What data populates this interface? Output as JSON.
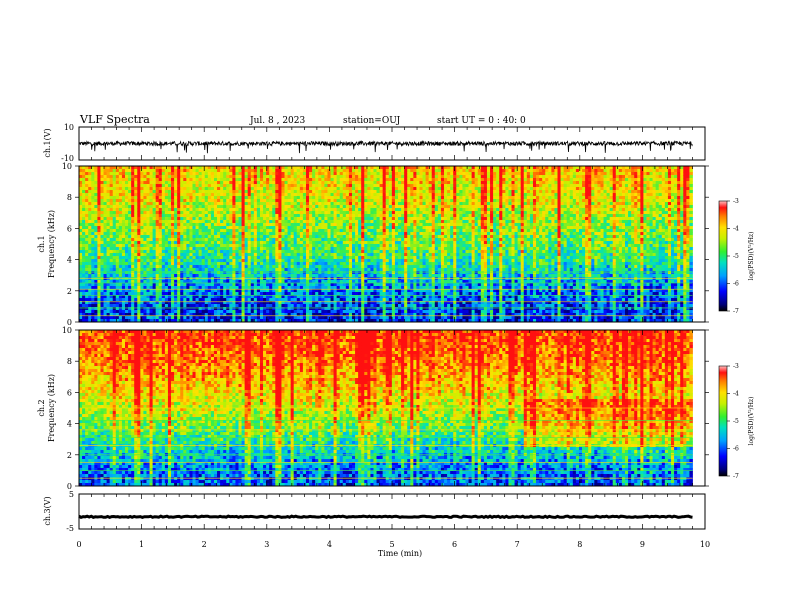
{
  "header": {
    "title": "VLF Spectra",
    "date": "Jul. 8 , 2023",
    "station": "station=OUJ",
    "start_ut": "start UT = 0 : 40: 0"
  },
  "colors": {
    "colormap": [
      "#000080",
      "#0000ff",
      "#00a0ff",
      "#00e0c0",
      "#40f040",
      "#c8f000",
      "#ffe000",
      "#ff8000",
      "#ff1010"
    ],
    "waveform": "#000000"
  },
  "chart_data": [
    {
      "type": "line",
      "id": "ch1-waveform",
      "ylabel": "ch.1(V)",
      "ylim": [
        -10,
        10
      ],
      "yticks": [
        {
          "value": 10,
          "label": "10"
        },
        {
          "value": -10,
          "label": "-10"
        }
      ],
      "xlim": [
        0,
        10
      ],
      "data_end_min": 9.8,
      "baseline_v": 0,
      "noise_amplitude_v": 2.5,
      "spike_amplitude_v": 6
    },
    {
      "type": "heatmap",
      "id": "ch1-spectrogram",
      "ylabel": "ch.1\nFrequency (kHz)",
      "ylim": [
        0,
        10
      ],
      "yticks": [
        0,
        2,
        4,
        6,
        8,
        10
      ],
      "xlim": [
        0,
        10
      ],
      "data_end_min": 9.8,
      "colorbar": {
        "label": "log(PSD)(V²/Hz)",
        "range": [
          -7,
          -3
        ],
        "ticks": [
          -3,
          -4,
          -5,
          -6,
          -7
        ]
      },
      "log_psd_profile": [
        {
          "freq_khz": 0,
          "value": -6.6
        },
        {
          "freq_khz": 1,
          "value": -6.5
        },
        {
          "freq_khz": 2,
          "value": -6.2
        },
        {
          "freq_khz": 3,
          "value": -5.8
        },
        {
          "freq_khz": 4,
          "value": -5.4
        },
        {
          "freq_khz": 6,
          "value": -4.9
        },
        {
          "freq_khz": 8,
          "value": -4.4
        },
        {
          "freq_khz": 10,
          "value": -4.1
        }
      ],
      "lines_khz": [
        0.4,
        0.9,
        1.3,
        1.7,
        2.1,
        2.5,
        2.8,
        3.2
      ]
    },
    {
      "type": "heatmap",
      "id": "ch2-spectrogram",
      "ylabel": "ch.2\nFrequency (kHz)",
      "ylim": [
        0,
        10
      ],
      "yticks": [
        0,
        2,
        4,
        6,
        8,
        10
      ],
      "xlim": [
        0,
        10
      ],
      "data_end_min": 9.8,
      "colorbar": {
        "label": "log(PSD)(V²/Hz)",
        "range": [
          -7,
          -3
        ],
        "ticks": [
          -3,
          -4,
          -5,
          -6,
          -7
        ]
      },
      "log_psd_profile": [
        {
          "freq_khz": 0,
          "value": -6.4
        },
        {
          "freq_khz": 1,
          "value": -6.2
        },
        {
          "freq_khz": 2,
          "value": -5.8
        },
        {
          "freq_khz": 3,
          "value": -5.4
        },
        {
          "freq_khz": 4,
          "value": -4.9
        },
        {
          "freq_khz": 6,
          "value": -4.2
        },
        {
          "freq_khz": 8,
          "value": -3.6
        },
        {
          "freq_khz": 10,
          "value": -3.3
        }
      ],
      "lines_khz": [
        0.5,
        1.0,
        1.5,
        2.0,
        2.6,
        3.1,
        3.6,
        4.2,
        5.0
      ],
      "late_band_from_min": 7.1
    },
    {
      "type": "line",
      "id": "ch3-waveform",
      "ylabel": "ch.3(V)",
      "ylim": [
        -5,
        5
      ],
      "yticks": [
        {
          "value": 5,
          "label": "5"
        },
        {
          "value": 0,
          "label": ""
        },
        {
          "value": -5,
          "label": "-5"
        }
      ],
      "xlim": [
        0,
        10
      ],
      "data_end_min": 9.8,
      "baseline_v": -1.5,
      "noise_amplitude_v": 0.35
    }
  ],
  "time_axis": {
    "label": "Time (min)",
    "ticks": [
      0,
      1,
      2,
      3,
      4,
      5,
      6,
      7,
      8,
      9,
      10
    ]
  }
}
